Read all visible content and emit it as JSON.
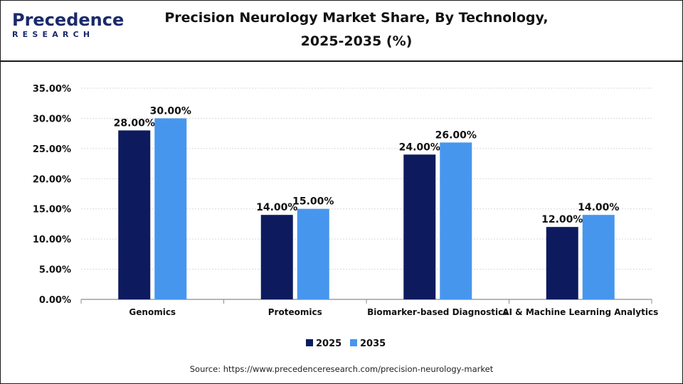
{
  "brand": {
    "logo_top": "Precedence",
    "logo_bottom": "RESEARCH"
  },
  "title_line1": "Precision Neurology Market Share, By Technology,",
  "title_line2": "2025-2035 (%)",
  "source": "Source: https://www.precedenceresearch.com/precision-neurology-market",
  "colors": {
    "series_2025": "#0d1b5e",
    "series_2035": "#4796ee",
    "brand": "#1b2a6b"
  },
  "chart_data": {
    "type": "bar",
    "title": "Precision Neurology Market Share, By Technology, 2025-2035 (%)",
    "categories": [
      "Genomics",
      "Proteomics",
      "Biomarker-based Diagnostics",
      "AI & Machine Learning Analytics"
    ],
    "series": [
      {
        "name": "2025",
        "values": [
          28,
          14,
          24,
          12
        ],
        "labels": [
          "28.00%",
          "14.00%",
          "24.00%",
          "12.00%"
        ]
      },
      {
        "name": "2035",
        "values": [
          30,
          15,
          26,
          14
        ],
        "labels": [
          "30.00%",
          "15.00%",
          "26.00%",
          "14.00%"
        ]
      }
    ],
    "ylim": [
      0,
      35
    ],
    "yticks": [
      "0.00%",
      "5.00%",
      "10.00%",
      "15.00%",
      "20.00%",
      "25.00%",
      "30.00%",
      "35.00%"
    ],
    "xlabel": "",
    "ylabel": "",
    "grid": true,
    "legend": "bottom-center"
  }
}
